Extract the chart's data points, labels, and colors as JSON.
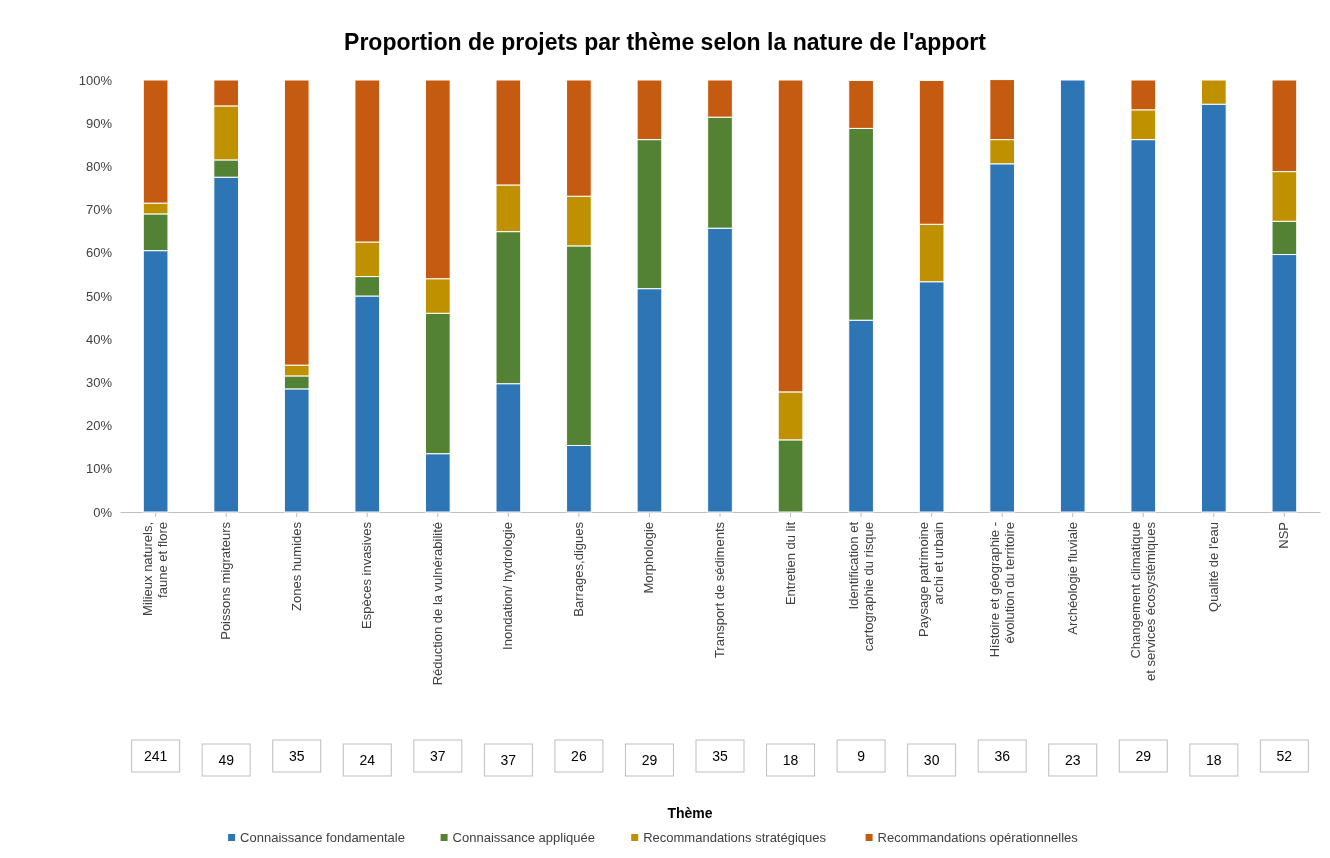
{
  "chart_data": {
    "type": "bar",
    "stacked": true,
    "title": "Proportion de projets par thème selon la nature de l'apport",
    "categories": [
      "Milieux naturels,\nfaune et flore",
      "Poissons migrateurs",
      "Zones humides",
      "Espèces invasives",
      "Réduction de la vulnérabilité",
      "Inondation/ hydrologie",
      "Barrages,digues",
      "Morphologie",
      "Transport de sédiments",
      "Entretien du lit",
      "Identification et\ncartographie du risque",
      "Paysage patrimoine\narchi et urbain",
      "Histoire et géographie -\névolution du territoire",
      "Archéologie fluviale",
      "Changement climatique\net services écosystémiques",
      "Qualité de l'eau",
      "NSP"
    ],
    "series": [
      {
        "name": "Connaissance fondamentale",
        "color": "#2e75b6",
        "values": [
          60.5,
          77.5,
          28.5,
          50,
          13.5,
          29.7,
          15.4,
          51.7,
          65.7,
          0,
          44.4,
          53.3,
          80.6,
          100,
          86.2,
          94.4,
          59.6
        ]
      },
      {
        "name": "Connaissance appliquée",
        "color": "#548235",
        "values": [
          8.5,
          4,
          3,
          4.5,
          32.5,
          35.2,
          46.2,
          34.5,
          25.7,
          16.7,
          44.4,
          0,
          0,
          0,
          0,
          0,
          7.7
        ]
      },
      {
        "name": "Recommandations stratégiques",
        "color": "#bf9000",
        "values": [
          2.5,
          12.5,
          2.5,
          8,
          8,
          10.8,
          11.5,
          0,
          0,
          11.1,
          0,
          13.3,
          5.6,
          0,
          6.9,
          5.6,
          11.5
        ]
      },
      {
        "name": "Recommandations opérationnelles",
        "color": "#c55a11",
        "values": [
          28.5,
          6,
          66,
          37.5,
          46,
          24.3,
          26.9,
          13.8,
          8.6,
          72.2,
          11.1,
          33.3,
          13.9,
          0,
          6.9,
          0,
          21.2
        ]
      }
    ],
    "annotations": [
      "241",
      "49",
      "35",
      "24",
      "37",
      "37",
      "26",
      "29",
      "35",
      "18",
      "9",
      "30",
      "36",
      "23",
      "29",
      "18",
      "52",
      "Thème"
    ],
    "ylim": [
      0,
      100
    ],
    "yticks": [
      {
        "value": 0,
        "label": "0%"
      },
      {
        "value": 10,
        "label": "10%"
      },
      {
        "value": 20,
        "label": "20%"
      },
      {
        "value": 30,
        "label": "30%"
      },
      {
        "value": 40,
        "label": "40%"
      },
      {
        "value": 50,
        "label": "50%"
      },
      {
        "value": 60,
        "label": "60%"
      },
      {
        "value": 70,
        "label": "70%"
      },
      {
        "value": 80,
        "label": "80%"
      },
      {
        "value": 90,
        "label": "90%"
      },
      {
        "value": 100,
        "label": "100%"
      }
    ],
    "grid": false,
    "legend": "bottom"
  }
}
